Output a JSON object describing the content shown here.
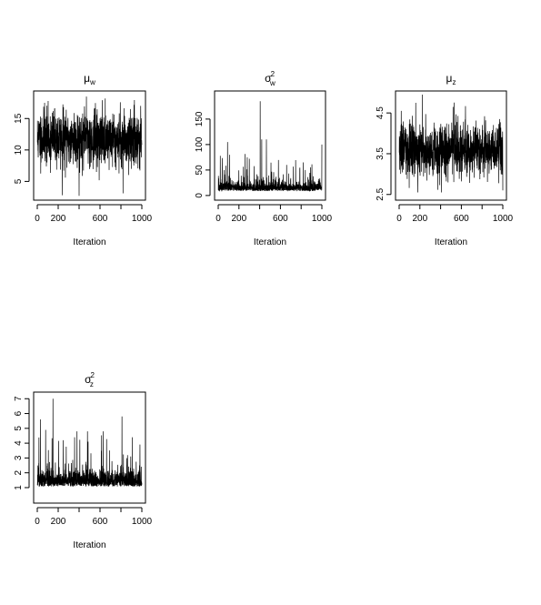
{
  "chart_data": [
    {
      "type": "line",
      "title_symbol": "μ",
      "title_subscript": "w",
      "title_superscript": "",
      "xlabel": "Iteration",
      "xticks": [
        0,
        200,
        600,
        1000
      ],
      "yticks": [
        5,
        10,
        15
      ],
      "xlim": [
        0,
        1000
      ],
      "ylim": [
        2.6,
        18.8
      ],
      "trace": {
        "n": 1000,
        "center": 11.8,
        "sd": 2.2,
        "min": 2.7,
        "max": 18.5,
        "seed": 11,
        "spikes": [
          [
            470,
            18.5
          ],
          [
            240,
            2.8
          ],
          [
            400,
            2.7
          ],
          [
            820,
            3.1
          ],
          [
            70,
            17.5
          ],
          [
            890,
            16.5
          ]
        ]
      }
    },
    {
      "type": "line",
      "title_symbol": "σ",
      "title_subscript": "w",
      "title_superscript": "2",
      "xlabel": "Iteration",
      "xticks": [
        0,
        200,
        600,
        1000
      ],
      "yticks": [
        0,
        50,
        100,
        150
      ],
      "xlim": [
        0,
        1000
      ],
      "ylim": [
        -2,
        198
      ],
      "trace": {
        "n": 1000,
        "center": 12,
        "sd": 8,
        "min": 4,
        "max": 185,
        "seed": 22,
        "skew": true,
        "spikes": [
          [
            405,
            185
          ],
          [
            465,
            110
          ],
          [
            420,
            110
          ],
          [
            90,
            105
          ],
          [
            1000,
            100
          ],
          [
            110,
            80
          ],
          [
            20,
            78
          ],
          [
            280,
            75
          ],
          [
            300,
            72
          ],
          [
            660,
            60
          ],
          [
            820,
            65
          ]
        ]
      }
    },
    {
      "type": "line",
      "title_symbol": "μ",
      "title_subscript": "z",
      "title_superscript": "",
      "xlabel": "Iteration",
      "xticks": [
        0,
        200,
        600,
        1000
      ],
      "yticks": [
        2.5,
        3.5,
        4.5
      ],
      "ylabels": [
        "2.5",
        "3.5",
        "4.5"
      ],
      "xlim": [
        0,
        1000
      ],
      "ylim": [
        2.45,
        4.95
      ],
      "trace": {
        "n": 1000,
        "center": 3.6,
        "sd": 0.32,
        "min": 2.55,
        "max": 4.95,
        "seed": 33,
        "spikes": [
          [
            225,
            4.95
          ],
          [
            160,
            4.75
          ],
          [
            520,
            4.65
          ],
          [
            180,
            2.55
          ],
          [
            1000,
            2.6
          ],
          [
            20,
            4.55
          ]
        ]
      }
    },
    {
      "type": "line",
      "title_symbol": "σ",
      "title_subscript": "z",
      "title_superscript": "2",
      "xlabel": "Iteration",
      "xticks": [
        0,
        200,
        600,
        1000
      ],
      "yticks": [
        1,
        2,
        3,
        4,
        5,
        6,
        7
      ],
      "xlim": [
        0,
        1000
      ],
      "ylim": [
        0.2,
        7.2
      ],
      "trace": {
        "n": 1000,
        "center": 1.55,
        "sd": 0.55,
        "min": 0.35,
        "max": 7.0,
        "seed": 44,
        "skew": true,
        "spikes": [
          [
            150,
            7.0
          ],
          [
            810,
            5.8
          ],
          [
            30,
            5.6
          ],
          [
            380,
            4.8
          ],
          [
            480,
            4.8
          ],
          [
            630,
            4.8
          ],
          [
            910,
            4.4
          ],
          [
            80,
            4.9
          ]
        ]
      }
    }
  ]
}
